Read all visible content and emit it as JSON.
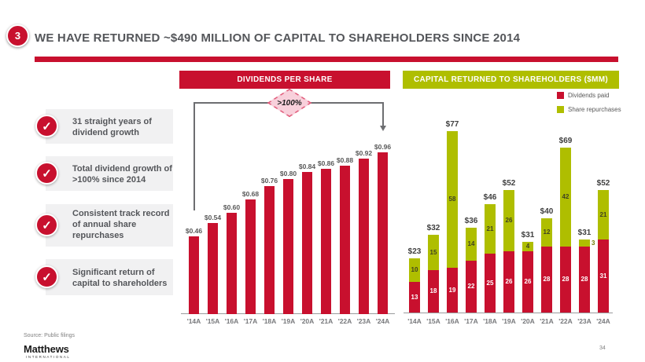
{
  "slide": {
    "badge": "3",
    "title": "WE HAVE RETURNED ~$490 MILLION OF CAPITAL TO SHAREHOLDERS SINCE 2014",
    "source": "Source: Public filings",
    "page_number": "34",
    "logo": {
      "name": "Matthews",
      "subtext": "INTERNATIONAL"
    }
  },
  "icons": {
    "check": "✓"
  },
  "colors": {
    "red": "#C8102E",
    "green": "#AFBE00",
    "title_gray": "#54565A",
    "band_gray": "#F1F1F2",
    "bracket_gray": "#6D6E71",
    "diamond_fill": "#F8D0DB",
    "diamond_border": "#E15C7B"
  },
  "bullets": [
    {
      "text": "31 straight years of dividend growth"
    },
    {
      "text": "Total dividend growth of >100% since 2014"
    },
    {
      "text": "Consistent track record of annual share repurchases"
    },
    {
      "text": "Significant return of capital to shareholders"
    }
  ],
  "chart_data": [
    {
      "type": "bar",
      "title": "DIVIDENDS PER SHARE",
      "categories": [
        "'14A",
        "'15A",
        "'16A",
        "'17A",
        "'18A",
        "'19A",
        "'20A",
        "'21A",
        "'22A",
        "'23A",
        "'24A"
      ],
      "values": [
        0.46,
        0.54,
        0.6,
        0.68,
        0.76,
        0.8,
        0.84,
        0.86,
        0.88,
        0.92,
        0.96
      ],
      "data_labels": [
        "$0.46",
        "$0.54",
        "$0.60",
        "$0.68",
        "$0.76",
        "$0.80",
        "$0.84",
        "$0.86",
        "$0.88",
        "$0.92",
        "$0.96"
      ],
      "annotation": ">100%",
      "bar_color": "#C8102E",
      "ylim": [
        0,
        1.0
      ],
      "grid": false,
      "legend": false
    },
    {
      "type": "stacked-bar",
      "title": "CAPITAL RETURNED TO SHAREHOLDERS ($MM)",
      "categories": [
        "'14A",
        "'15A",
        "'16A",
        "'17A",
        "'18A",
        "'19A",
        "'20A",
        "'21A",
        "'22A",
        "'23A",
        "'24A"
      ],
      "series": [
        {
          "name": "Dividends paid",
          "color": "#C8102E",
          "values": [
            13,
            18,
            19,
            22,
            25,
            26,
            26,
            28,
            28,
            28,
            31
          ]
        },
        {
          "name": "Share repurchases",
          "color": "#AFBE00",
          "values": [
            10,
            15,
            58,
            14,
            21,
            26,
            4,
            12,
            42,
            3,
            21
          ]
        }
      ],
      "totals": [
        "$23",
        "$32",
        "$77",
        "$36",
        "$46",
        "$52",
        "$31",
        "$40",
        "$69",
        "$31",
        "$52"
      ],
      "ylim": [
        0,
        85
      ],
      "grid": false,
      "legend_position": "top-right"
    }
  ]
}
